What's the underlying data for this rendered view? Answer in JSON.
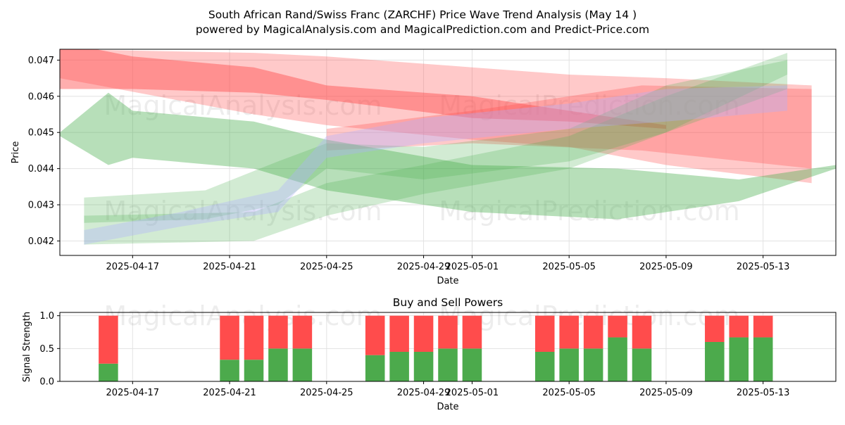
{
  "title_line1": "South African Rand/Swiss Franc (ZARCHF) Price Wave Trend Analysis (May 14 )",
  "title_line2": "powered by MagicalAnalysis.com and MagicalPrediction.com and Predict-Price.com",
  "watermarks": [
    "MagicalAnalysis.com",
    "MagicalPrediction.com"
  ],
  "colors": {
    "bullish_band": "#4caf50",
    "bearish_band": "#ff4c4c",
    "neutral_band": "#b0b0ff",
    "buy_bar": "#4caa4c",
    "sell_bar": "#ff4c4c"
  },
  "chart_data": [
    {
      "type": "area",
      "title": "",
      "xlabel": "Date",
      "ylabel": "Price",
      "x_range": [
        "2025-04-14",
        "2025-05-16"
      ],
      "ylim": [
        0.0416,
        0.0473
      ],
      "x_ticks": [
        "2025-04-17",
        "2025-04-21",
        "2025-04-25",
        "2025-04-29",
        "2025-05-01",
        "2025-05-05",
        "2025-05-09",
        "2025-05-13"
      ],
      "y_ticks": [
        "0.042",
        "0.043",
        "0.044",
        "0.045",
        "0.046",
        "0.047"
      ],
      "grid": true,
      "series": [
        {
          "color": "red",
          "opacity": 0.45,
          "points": [
            {
              "x": "2025-04-14",
              "lo": 0.0462,
              "hi": 0.0475
            },
            {
              "x": "2025-04-17",
              "lo": 0.0462,
              "hi": 0.0471
            },
            {
              "x": "2025-04-22",
              "lo": 0.0461,
              "hi": 0.0468
            },
            {
              "x": "2025-04-25",
              "lo": 0.0459,
              "hi": 0.0463
            },
            {
              "x": "2025-05-01",
              "lo": 0.0454,
              "hi": 0.046
            },
            {
              "x": "2025-05-05",
              "lo": 0.0453,
              "hi": 0.0456
            },
            {
              "x": "2025-05-09",
              "lo": 0.0451,
              "hi": 0.0452
            }
          ]
        },
        {
          "color": "red",
          "opacity": 0.3,
          "points": [
            {
              "x": "2025-04-14",
              "lo": 0.0465,
              "hi": 0.0473
            },
            {
              "x": "2025-04-22",
              "lo": 0.0455,
              "hi": 0.0472
            },
            {
              "x": "2025-04-25",
              "lo": 0.0452,
              "hi": 0.0471
            },
            {
              "x": "2025-05-01",
              "lo": 0.0448,
              "hi": 0.0468
            },
            {
              "x": "2025-05-05",
              "lo": 0.0446,
              "hi": 0.0466
            },
            {
              "x": "2025-05-09",
              "lo": 0.0441,
              "hi": 0.0465
            },
            {
              "x": "2025-05-15",
              "lo": 0.0436,
              "hi": 0.0463
            }
          ]
        },
        {
          "color": "red",
          "opacity": 0.3,
          "points": [
            {
              "x": "2025-04-25",
              "lo": 0.0445,
              "hi": 0.0451
            },
            {
              "x": "2025-05-01",
              "lo": 0.0447,
              "hi": 0.0456
            },
            {
              "x": "2025-05-08",
              "lo": 0.0445,
              "hi": 0.0463
            },
            {
              "x": "2025-05-15",
              "lo": 0.044,
              "hi": 0.0462
            }
          ]
        },
        {
          "color": "green",
          "opacity": 0.4,
          "points": [
            {
              "x": "2025-04-14",
              "lo": 0.0449,
              "hi": 0.045
            },
            {
              "x": "2025-04-16",
              "lo": 0.0441,
              "hi": 0.0461
            },
            {
              "x": "2025-04-17",
              "lo": 0.0443,
              "hi": 0.0456
            },
            {
              "x": "2025-04-22",
              "lo": 0.044,
              "hi": 0.0453
            },
            {
              "x": "2025-04-25",
              "lo": 0.0434,
              "hi": 0.0448
            },
            {
              "x": "2025-05-01",
              "lo": 0.0428,
              "hi": 0.0441
            },
            {
              "x": "2025-05-07",
              "lo": 0.0426,
              "hi": 0.044
            },
            {
              "x": "2025-05-12",
              "lo": 0.0431,
              "hi": 0.0437
            },
            {
              "x": "2025-05-16",
              "lo": 0.044,
              "hi": 0.0441
            }
          ]
        },
        {
          "color": "green",
          "opacity": 0.25,
          "points": [
            {
              "x": "2025-04-15",
              "lo": 0.0425,
              "hi": 0.0432
            },
            {
              "x": "2025-04-20",
              "lo": 0.0426,
              "hi": 0.0434
            },
            {
              "x": "2025-04-23",
              "lo": 0.043,
              "hi": 0.0442
            },
            {
              "x": "2025-04-25",
              "lo": 0.044,
              "hi": 0.0447
            },
            {
              "x": "2025-04-29",
              "lo": 0.0437,
              "hi": 0.0446
            },
            {
              "x": "2025-05-05",
              "lo": 0.0442,
              "hi": 0.0451
            },
            {
              "x": "2025-05-09",
              "lo": 0.045,
              "hi": 0.0463
            },
            {
              "x": "2025-05-14",
              "lo": 0.0462,
              "hi": 0.047
            }
          ]
        },
        {
          "color": "green",
          "opacity": 0.25,
          "points": [
            {
              "x": "2025-04-15",
              "lo": 0.0419,
              "hi": 0.0427
            },
            {
              "x": "2025-04-22",
              "lo": 0.042,
              "hi": 0.0428
            },
            {
              "x": "2025-04-25",
              "lo": 0.0427,
              "hi": 0.0436
            },
            {
              "x": "2025-04-29",
              "lo": 0.0433,
              "hi": 0.0441
            },
            {
              "x": "2025-05-05",
              "lo": 0.044,
              "hi": 0.0449
            },
            {
              "x": "2025-05-09",
              "lo": 0.045,
              "hi": 0.046
            },
            {
              "x": "2025-05-14",
              "lo": 0.0466,
              "hi": 0.0472
            }
          ]
        },
        {
          "color": "blue",
          "opacity": 0.35,
          "points": [
            {
              "x": "2025-04-15",
              "lo": 0.0419,
              "hi": 0.0423
            },
            {
              "x": "2025-04-19",
              "lo": 0.0424,
              "hi": 0.0428
            },
            {
              "x": "2025-04-23",
              "lo": 0.0428,
              "hi": 0.0434
            },
            {
              "x": "2025-04-25",
              "lo": 0.0443,
              "hi": 0.0449
            },
            {
              "x": "2025-04-29",
              "lo": 0.0447,
              "hi": 0.0454
            },
            {
              "x": "2025-05-05",
              "lo": 0.0451,
              "hi": 0.0458
            },
            {
              "x": "2025-05-09",
              "lo": 0.0453,
              "hi": 0.0462
            },
            {
              "x": "2025-05-14",
              "lo": 0.0456,
              "hi": 0.0463
            }
          ]
        }
      ]
    },
    {
      "type": "bar",
      "title": "Buy and Sell Powers",
      "xlabel": "Date",
      "ylabel": "Signal Strength",
      "x_range": [
        "2025-04-14",
        "2025-05-16"
      ],
      "ylim": [
        0,
        1.05
      ],
      "x_ticks": [
        "2025-04-17",
        "2025-04-21",
        "2025-04-25",
        "2025-04-29",
        "2025-05-01",
        "2025-05-05",
        "2025-05-09",
        "2025-05-13"
      ],
      "y_ticks": [
        "0.0",
        "0.5",
        "1.0"
      ],
      "grid": true,
      "categories": [
        "2025-04-16",
        "2025-04-21",
        "2025-04-22",
        "2025-04-23",
        "2025-04-24",
        "2025-04-27",
        "2025-04-28",
        "2025-04-29",
        "2025-04-30",
        "2025-05-01",
        "2025-05-04",
        "2025-05-05",
        "2025-05-06",
        "2025-05-07",
        "2025-05-08",
        "2025-05-11",
        "2025-05-12",
        "2025-05-13"
      ],
      "series": [
        {
          "name": "Buy",
          "values": [
            0.27,
            0.33,
            0.33,
            0.5,
            0.5,
            0.4,
            0.45,
            0.45,
            0.5,
            0.5,
            0.45,
            0.5,
            0.5,
            0.67,
            0.5,
            0.6,
            0.67,
            0.67
          ]
        },
        {
          "name": "Sell",
          "values": [
            0.73,
            0.67,
            0.67,
            0.5,
            0.5,
            0.6,
            0.55,
            0.55,
            0.5,
            0.5,
            0.55,
            0.5,
            0.5,
            0.33,
            0.5,
            0.4,
            0.33,
            0.33
          ]
        }
      ]
    }
  ]
}
